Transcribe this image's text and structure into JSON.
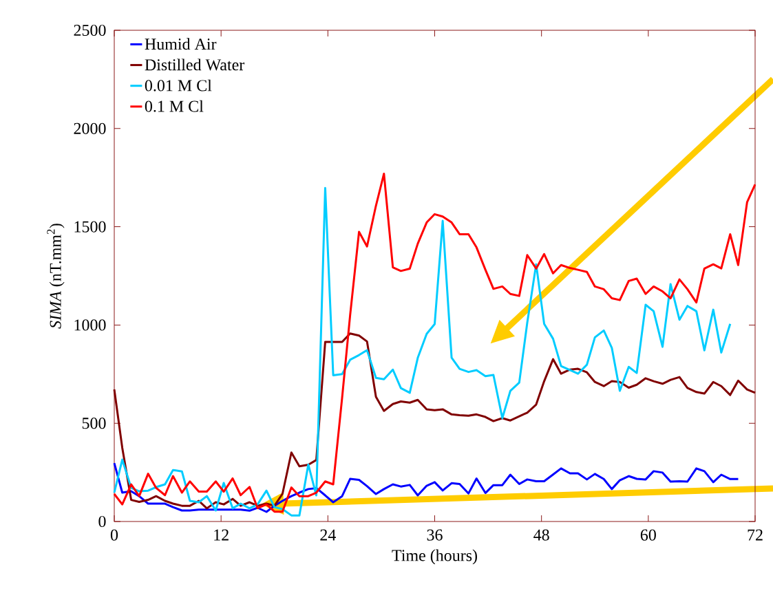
{
  "chart_data": {
    "type": "line",
    "xlabel": "Time (hours)",
    "ylabel": "*SIMA*  (nT.mm$^{2}$)",
    "x": [
      0,
      0.9,
      1.9,
      2.8,
      3.8,
      4.7,
      5.7,
      6.6,
      7.6,
      8.5,
      9.5,
      10.4,
      11.4,
      12.3,
      13.3,
      14.2,
      15.2,
      16.1,
      17.1,
      18.0,
      18.9,
      19.9,
      20.8,
      21.8,
      22.7,
      23.7,
      24.6,
      25.6,
      26.5,
      27.5,
      28.4,
      29.4,
      30.3,
      31.3,
      32.2,
      33.2,
      34.1,
      35.1,
      36.0,
      36.9,
      37.9,
      38.8,
      39.8,
      40.7,
      41.7,
      42.6,
      43.6,
      44.5,
      45.5,
      46.4,
      47.4,
      48.3,
      49.3,
      50.2,
      51.2,
      52.1,
      53.1,
      54.0,
      55.0,
      55.9,
      56.8,
      57.8,
      58.7,
      59.7,
      60.6,
      61.6,
      62.5,
      63.5,
      64.4,
      65.4,
      66.3,
      67.3,
      68.2,
      69.2,
      70.1,
      71.1,
      72.0
    ],
    "series": [
      {
        "name": "Humid Air",
        "color": "#0000ff",
        "values": [
          297,
          147,
          154,
          129,
          91,
          91,
          91,
          73,
          56,
          56,
          60,
          60,
          60,
          60,
          60,
          60,
          55,
          70,
          49,
          80,
          105,
          129,
          147,
          165,
          170,
          133,
          98,
          129,
          217,
          212,
          180,
          140,
          165,
          189,
          178,
          186,
          133,
          182,
          200,
          158,
          195,
          191,
          143,
          219,
          145,
          185,
          185,
          238,
          191,
          214,
          205,
          205,
          239,
          270,
          245,
          245,
          214,
          242,
          216,
          165,
          210,
          231,
          217,
          214,
          256,
          249,
          203,
          205,
          203,
          270,
          256,
          200,
          238,
          216,
          216,
          null,
          null
        ]
      },
      {
        "name": "Distilled Water",
        "color": "#800000",
        "values": [
          672,
          375,
          110,
          100,
          110,
          129,
          105,
          91,
          80,
          80,
          105,
          67,
          98,
          87,
          115,
          80,
          98,
          80,
          91,
          80,
          141,
          351,
          281,
          289,
          313,
          914,
          914,
          914,
          957,
          946,
          916,
          635,
          563,
          598,
          611,
          605,
          619,
          571,
          566,
          571,
          545,
          541,
          538,
          545,
          532,
          511,
          526,
          514,
          535,
          554,
          595,
          714,
          826,
          752,
          773,
          777,
          759,
          710,
          689,
          714,
          710,
          681,
          696,
          729,
          714,
          701,
          721,
          735,
          680,
          659,
          651,
          710,
          689,
          644,
          717,
          672,
          655
        ]
      },
      {
        "name": "0.01 M Cl",
        "color": "#00ccff",
        "values": [
          147,
          315,
          171,
          154,
          157,
          175,
          189,
          262,
          255,
          105,
          98,
          129,
          56,
          196,
          67,
          91,
          67,
          87,
          157,
          73,
          63,
          31,
          31,
          290,
          133,
          1697,
          744,
          750,
          823,
          847,
          872,
          731,
          724,
          773,
          679,
          655,
          833,
          955,
          1005,
          1530,
          834,
          777,
          761,
          770,
          740,
          746,
          526,
          665,
          707,
          1012,
          1309,
          1006,
          930,
          791,
          771,
          752,
          798,
          937,
          972,
          884,
          665,
          787,
          756,
          1103,
          1070,
          889,
          1208,
          1027,
          1097,
          1070,
          871,
          1078,
          860,
          1006,
          null,
          null,
          null
        ]
      },
      {
        "name": "0.1 M Cl",
        "color": "#ff0000",
        "values": [
          140,
          87,
          189,
          129,
          243,
          171,
          134,
          231,
          147,
          204,
          152,
          152,
          204,
          152,
          219,
          134,
          176,
          68,
          87,
          50,
          50,
          173,
          129,
          129,
          147,
          204,
          189,
          630,
          1050,
          1474,
          1400,
          1607,
          1770,
          1293,
          1275,
          1287,
          1414,
          1522,
          1564,
          1552,
          1522,
          1462,
          1462,
          1395,
          1281,
          1184,
          1196,
          1158,
          1148,
          1356,
          1287,
          1361,
          1263,
          1305,
          1290,
          1281,
          1270,
          1196,
          1182,
          1136,
          1127,
          1224,
          1236,
          1158,
          1196,
          1171,
          1136,
          1232,
          1182,
          1115,
          1287,
          1309,
          1288,
          1462,
          1305,
          1625,
          1715
        ]
      }
    ],
    "xlim": [
      0,
      72
    ],
    "ylim": [
      0,
      2500
    ],
    "xticks": [
      0,
      12,
      24,
      36,
      48,
      60,
      72
    ],
    "yticks": [
      0,
      500,
      1000,
      1500,
      2000,
      2500
    ],
    "legend": "top left",
    "marker": "none",
    "line_style": "solid"
  }
}
